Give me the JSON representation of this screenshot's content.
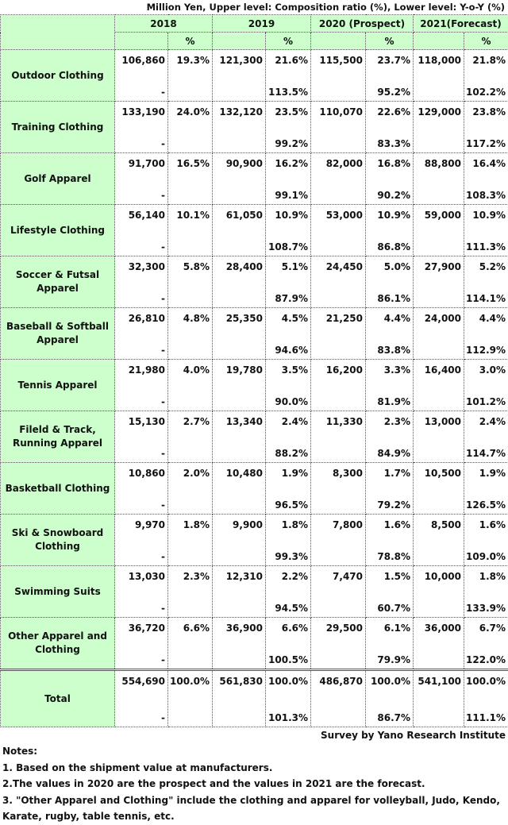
{
  "unit_note": "Million Yen, Upper level: Composition ratio (%), Lower level: Y-o-Y (%)",
  "headers": {
    "years": [
      "2018",
      "2019",
      "2020 (Prospect)",
      "2021(Forecast)"
    ],
    "pct_symbol": "%"
  },
  "rows": [
    {
      "label": "Outdoor Clothing",
      "vals": [
        [
          "106,860",
          "19.3%",
          "-"
        ],
        [
          "121,300",
          "21.6%",
          "113.5%"
        ],
        [
          "115,500",
          "23.7%",
          "95.2%"
        ],
        [
          "118,000",
          "21.8%",
          "102.2%"
        ]
      ]
    },
    {
      "label": "Training Clothing",
      "vals": [
        [
          "133,190",
          "24.0%",
          "-"
        ],
        [
          "132,120",
          "23.5%",
          "99.2%"
        ],
        [
          "110,070",
          "22.6%",
          "83.3%"
        ],
        [
          "129,000",
          "23.8%",
          "117.2%"
        ]
      ]
    },
    {
      "label": "Golf Apparel",
      "vals": [
        [
          "91,700",
          "16.5%",
          "-"
        ],
        [
          "90,900",
          "16.2%",
          "99.1%"
        ],
        [
          "82,000",
          "16.8%",
          "90.2%"
        ],
        [
          "88,800",
          "16.4%",
          "108.3%"
        ]
      ]
    },
    {
      "label": "Lifestyle Clothing",
      "vals": [
        [
          "56,140",
          "10.1%",
          "-"
        ],
        [
          "61,050",
          "10.9%",
          "108.7%"
        ],
        [
          "53,000",
          "10.9%",
          "86.8%"
        ],
        [
          "59,000",
          "10.9%",
          "111.3%"
        ]
      ]
    },
    {
      "label": "Soccer & Futsal Apparel",
      "vals": [
        [
          "32,300",
          "5.8%",
          "-"
        ],
        [
          "28,400",
          "5.1%",
          "87.9%"
        ],
        [
          "24,450",
          "5.0%",
          "86.1%"
        ],
        [
          "27,900",
          "5.2%",
          "114.1%"
        ]
      ]
    },
    {
      "label": "Baseball & Softball Apparel",
      "vals": [
        [
          "26,810",
          "4.8%",
          "-"
        ],
        [
          "25,350",
          "4.5%",
          "94.6%"
        ],
        [
          "21,250",
          "4.4%",
          "83.8%"
        ],
        [
          "24,000",
          "4.4%",
          "112.9%"
        ]
      ]
    },
    {
      "label": "Tennis Apparel",
      "vals": [
        [
          "21,980",
          "4.0%",
          "-"
        ],
        [
          "19,780",
          "3.5%",
          "90.0%"
        ],
        [
          "16,200",
          "3.3%",
          "81.9%"
        ],
        [
          "16,400",
          "3.0%",
          "101.2%"
        ]
      ]
    },
    {
      "label": "Fileld & Track, Running Apparel",
      "vals": [
        [
          "15,130",
          "2.7%",
          "-"
        ],
        [
          "13,340",
          "2.4%",
          "88.2%"
        ],
        [
          "11,330",
          "2.3%",
          "84.9%"
        ],
        [
          "13,000",
          "2.4%",
          "114.7%"
        ]
      ]
    },
    {
      "label": "Basketball Clothing",
      "vals": [
        [
          "10,860",
          "2.0%",
          "-"
        ],
        [
          "10,480",
          "1.9%",
          "96.5%"
        ],
        [
          "8,300",
          "1.7%",
          "79.2%"
        ],
        [
          "10,500",
          "1.9%",
          "126.5%"
        ]
      ]
    },
    {
      "label": "Ski & Snowboard Clothing",
      "vals": [
        [
          "9,970",
          "1.8%",
          "-"
        ],
        [
          "9,900",
          "1.8%",
          "99.3%"
        ],
        [
          "7,800",
          "1.6%",
          "78.8%"
        ],
        [
          "8,500",
          "1.6%",
          "109.0%"
        ]
      ]
    },
    {
      "label": "Swimming Suits",
      "vals": [
        [
          "13,030",
          "2.3%",
          "-"
        ],
        [
          "12,310",
          "2.2%",
          "94.5%"
        ],
        [
          "7,470",
          "1.5%",
          "60.7%"
        ],
        [
          "10,000",
          "1.8%",
          "133.9%"
        ]
      ]
    },
    {
      "label": "Other Apparel and Clothing",
      "vals": [
        [
          "36,720",
          "6.6%",
          "-"
        ],
        [
          "36,900",
          "6.6%",
          "100.5%"
        ],
        [
          "29,500",
          "6.1%",
          "79.9%"
        ],
        [
          "36,000",
          "6.7%",
          "122.0%"
        ]
      ]
    }
  ],
  "total": {
    "label": "Total",
    "vals": [
      [
        "554,690",
        "100.0%",
        "-"
      ],
      [
        "561,830",
        "100.0%",
        "101.3%"
      ],
      [
        "486,870",
        "100.0%",
        "86.7%"
      ],
      [
        "541,100",
        "100.0%",
        "111.1%"
      ]
    ]
  },
  "source": "Survey by Yano Research Institute",
  "notes": {
    "title": "Notes:",
    "items": [
      "1. Based on the shipment value at manufacturers.",
      "2.The values in 2020 are the prospect and the values in 2021 are the forecast.",
      "3. \"Other Apparel and Clothing\" include the clothing and apparel for volleyball, Judo, Kendo, Karate, rugby, table tennis, etc."
    ]
  }
}
